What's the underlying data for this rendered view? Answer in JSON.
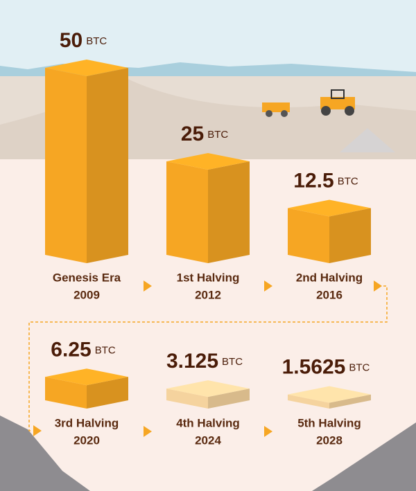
{
  "chart_data": {
    "type": "bar",
    "unit": "BTC",
    "categories": [
      "Genesis Era",
      "1st Halving",
      "2nd Halving",
      "3rd Halving",
      "4th Halving",
      "5th Halving"
    ],
    "years": [
      2009,
      2012,
      2016,
      2020,
      2024,
      2028
    ],
    "values": [
      50,
      25,
      12.5,
      6.25,
      3.125,
      1.5625
    ],
    "colors": [
      "#f6a623",
      "#f6a623",
      "#f6a623",
      "#f6a623",
      "#f5d39e",
      "#f5d39e"
    ]
  }
}
